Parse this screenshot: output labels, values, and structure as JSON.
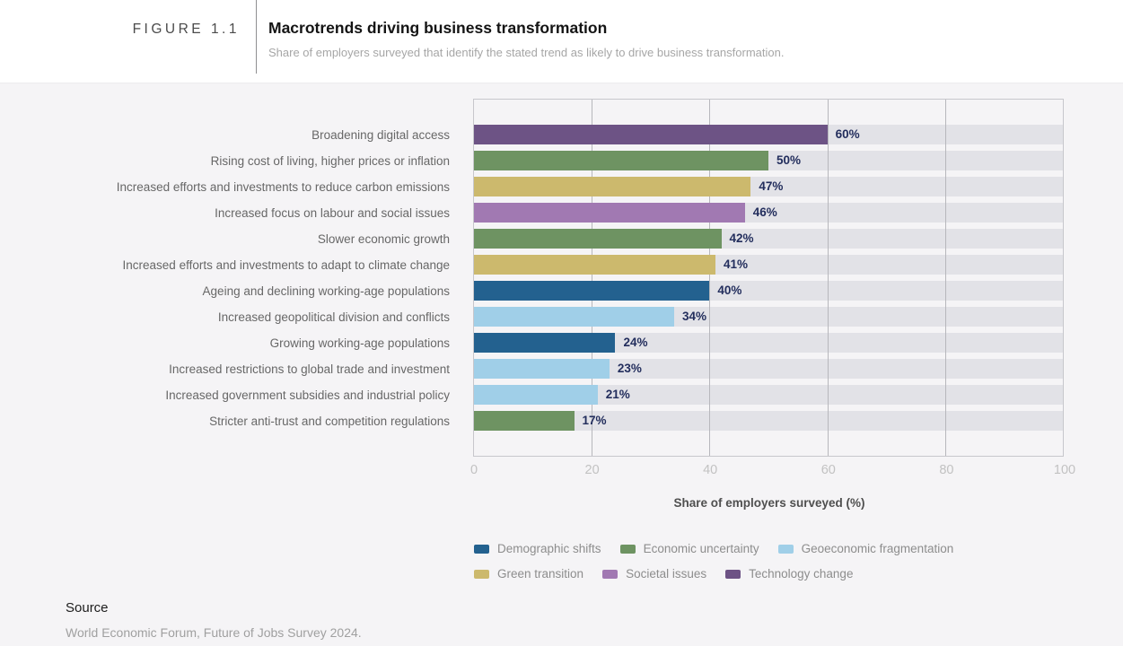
{
  "header": {
    "figure_label": "FIGURE 1.1",
    "title": "Macrotrends driving business transformation",
    "subtitle": "Share of employers surveyed that identify the stated trend as likely to drive business transformation."
  },
  "chart_data": {
    "type": "bar",
    "orientation": "horizontal",
    "title": "Macrotrends driving business transformation",
    "xlabel": "Share of employers surveyed (%)",
    "xlim": [
      0,
      100
    ],
    "x_ticks": [
      0,
      20,
      40,
      60,
      80,
      100
    ],
    "grid": true,
    "categories": [
      "Broadening digital access",
      "Rising cost of living, higher prices or inflation",
      "Increased efforts and investments to reduce carbon emissions",
      "Increased focus on labour and social issues",
      "Slower economic growth",
      "Increased efforts and investments to adapt to climate change",
      "Ageing and declining working-age populations",
      "Increased geopolitical division and conflicts",
      "Growing working-age populations",
      "Increased restrictions to global trade and investment",
      "Increased government subsidies and industrial policy",
      "Stricter anti-trust and competition regulations"
    ],
    "values": [
      60,
      50,
      47,
      46,
      42,
      41,
      40,
      34,
      24,
      23,
      21,
      17
    ],
    "value_labels": [
      "60%",
      "50%",
      "47%",
      "46%",
      "42%",
      "41%",
      "40%",
      "34%",
      "24%",
      "23%",
      "21%",
      "17%"
    ],
    "groups": [
      "Technology change",
      "Economic uncertainty",
      "Green transition",
      "Societal issues",
      "Economic uncertainty",
      "Green transition",
      "Demographic shifts",
      "Geoeconomic fragmentation",
      "Demographic shifts",
      "Geoeconomic fragmentation",
      "Geoeconomic fragmentation",
      "Economic uncertainty"
    ],
    "legend": [
      {
        "label": "Demographic shifts",
        "color": "#23618f"
      },
      {
        "label": "Economic uncertainty",
        "color": "#6e9362"
      },
      {
        "label": "Geoeconomic fragmentation",
        "color": "#a0cfe8"
      },
      {
        "label": "Green transition",
        "color": "#ccb96d"
      },
      {
        "label": "Societal issues",
        "color": "#a179b2"
      },
      {
        "label": "Technology change",
        "color": "#6d5385"
      }
    ],
    "legend_position": "bottom",
    "styles": {
      "track_color": "#e2e2e7",
      "gridline_color": "#b7b7bc",
      "value_label_color": "#232e5d",
      "plot_border_color": "#c7c7cc",
      "background_color": "#f5f4f6"
    }
  },
  "footer": {
    "source_label": "Source",
    "source_text": "World Economic Forum, Future of Jobs Survey 2024."
  }
}
